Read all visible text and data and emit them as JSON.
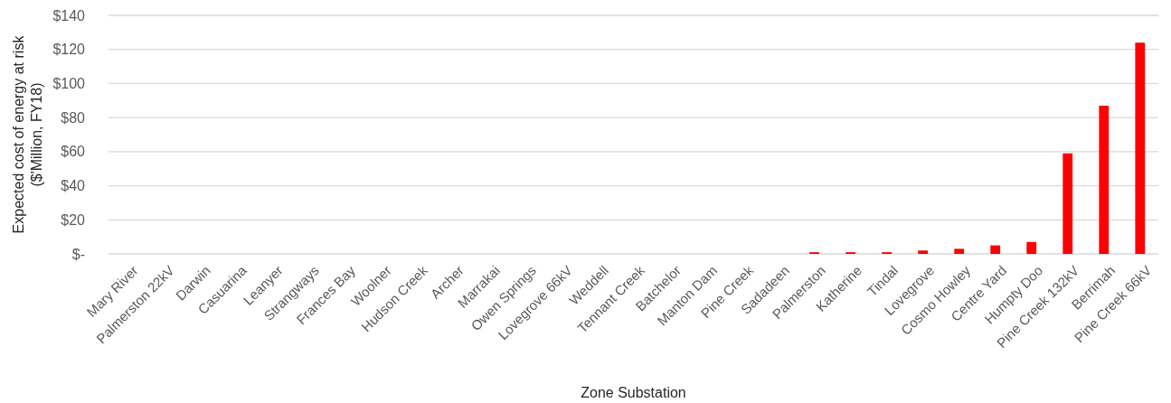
{
  "chart_data": {
    "type": "bar",
    "xlabel": "Zone Substation",
    "ylabel": "Expected cost of energy at risk\n($'Million, FY18)",
    "categories": [
      "Mary River",
      "Palmerston 22kV",
      "Darwin",
      "Casuarina",
      "Leanyer",
      "Strangways",
      "Frances Bay",
      "Woolner",
      "Hudson Creek",
      "Archer",
      "Marrakai",
      "Owen Springs",
      "Lovegrove 66kV",
      "Weddell",
      "Tennant Creek",
      "Batchelor",
      "Manton Dam",
      "Pine Creek",
      "Sadadeen",
      "Palmerston",
      "Katherine",
      "Tindal",
      "Lovegrove",
      "Cosmo Howley",
      "Centre Yard",
      "Humpty Doo",
      "Pine Creek 132kV",
      "Berrimah",
      "Pine Creek 66kV"
    ],
    "values": [
      0,
      0,
      0,
      0,
      0,
      0,
      0,
      0,
      0,
      0,
      0,
      0,
      0,
      0,
      0,
      0,
      0,
      0,
      0,
      1,
      1,
      1,
      2,
      3,
      5,
      7,
      59,
      87,
      124
    ],
    "color": "#ff0000",
    "ylim": [
      0,
      140
    ],
    "yticks": [
      {
        "value": 0,
        "label": "$-"
      },
      {
        "value": 20,
        "label": "$20"
      },
      {
        "value": 40,
        "label": "$40"
      },
      {
        "value": 60,
        "label": "$60"
      },
      {
        "value": 80,
        "label": "$80"
      },
      {
        "value": 100,
        "label": "$100"
      },
      {
        "value": 120,
        "label": "$120"
      },
      {
        "value": 140,
        "label": "$140"
      }
    ],
    "grid": "y"
  }
}
